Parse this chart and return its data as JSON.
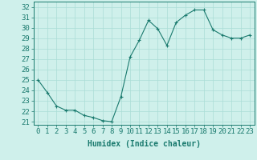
{
  "x": [
    0,
    1,
    2,
    3,
    4,
    5,
    6,
    7,
    8,
    9,
    10,
    11,
    12,
    13,
    14,
    15,
    16,
    17,
    18,
    19,
    20,
    21,
    22,
    23
  ],
  "y": [
    25,
    23.8,
    22.5,
    22.1,
    22.1,
    21.6,
    21.4,
    21.1,
    21.0,
    23.4,
    27.2,
    28.8,
    30.7,
    29.9,
    28.3,
    30.5,
    31.2,
    31.7,
    31.7,
    29.8,
    29.3,
    29.0,
    29.0,
    29.3
  ],
  "line_color": "#1a7a6e",
  "marker": "+",
  "background_color": "#cff0eb",
  "grid_color": "#aaddd6",
  "xlabel": "Humidex (Indice chaleur)",
  "ylabel_ticks": [
    21,
    22,
    23,
    24,
    25,
    26,
    27,
    28,
    29,
    30,
    31,
    32
  ],
  "xlim": [
    -0.5,
    23.5
  ],
  "ylim": [
    20.7,
    32.5
  ],
  "tick_color": "#1a7a6e",
  "label_color": "#1a7a6e",
  "xlabel_fontsize": 7,
  "tick_fontsize": 6.5
}
